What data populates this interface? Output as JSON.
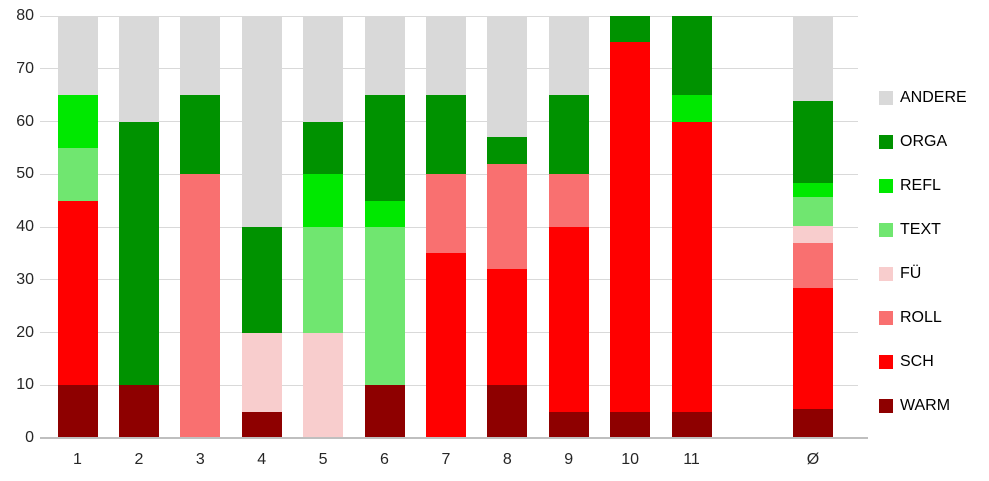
{
  "chart": {
    "background_color": "#ffffff",
    "grid_color": "#d9d9d9",
    "axis_line_color": "#bfbfbf",
    "text_color": "#262626"
  },
  "chart_data": {
    "type": "bar",
    "stacked": true,
    "title": "",
    "xlabel": "",
    "ylabel": "",
    "categories": [
      "1",
      "2",
      "3",
      "4",
      "5",
      "6",
      "7",
      "8",
      "9",
      "10",
      "11",
      "Ø"
    ],
    "average_column_label": "Ø",
    "ylim": [
      0,
      80
    ],
    "ytick_step": 10,
    "ytick_labels": [
      "0",
      "10",
      "20",
      "30",
      "40",
      "50",
      "60",
      "70",
      "80"
    ],
    "grid": true,
    "legend_position": "right",
    "legend_order_top_to_bottom": [
      "ANDERE",
      "ORGA",
      "REFL",
      "TEXT",
      "FÜ",
      "ROLL",
      "SCH",
      "WARM"
    ],
    "series": [
      {
        "name": "WARM",
        "color": "#8e0000",
        "values": [
          10,
          10,
          0,
          5,
          0,
          10,
          0,
          10,
          5,
          5,
          5,
          5.5
        ]
      },
      {
        "name": "SCH",
        "color": "#ff0000",
        "values": [
          35,
          0,
          0,
          0,
          0,
          0,
          35,
          22,
          35,
          70,
          55,
          22.9
        ]
      },
      {
        "name": "ROLL",
        "color": "#f97070",
        "values": [
          0,
          0,
          50,
          0,
          0,
          0,
          15,
          20,
          10,
          0,
          0,
          8.6
        ]
      },
      {
        "name": "FÜ",
        "color": "#f8cdcd",
        "values": [
          0,
          0,
          0,
          15,
          20,
          0,
          0,
          0,
          0,
          0,
          0,
          3.2
        ]
      },
      {
        "name": "TEXT",
        "color": "#70e670",
        "values": [
          10,
          0,
          0,
          0,
          20,
          30,
          0,
          0,
          0,
          0,
          0,
          5.5
        ]
      },
      {
        "name": "REFL",
        "color": "#00e800",
        "values": [
          10,
          0,
          0,
          0,
          10,
          5,
          0,
          0,
          0,
          0,
          5,
          2.7
        ]
      },
      {
        "name": "ORGA",
        "color": "#009200",
        "values": [
          0,
          50,
          15,
          20,
          10,
          20,
          15,
          5,
          15,
          5,
          15,
          15.5
        ]
      },
      {
        "name": "ANDERE",
        "color": "#d9d9d9",
        "values": [
          15,
          20,
          15,
          40,
          20,
          15,
          15,
          23,
          15,
          0,
          0,
          16.1
        ]
      }
    ]
  }
}
